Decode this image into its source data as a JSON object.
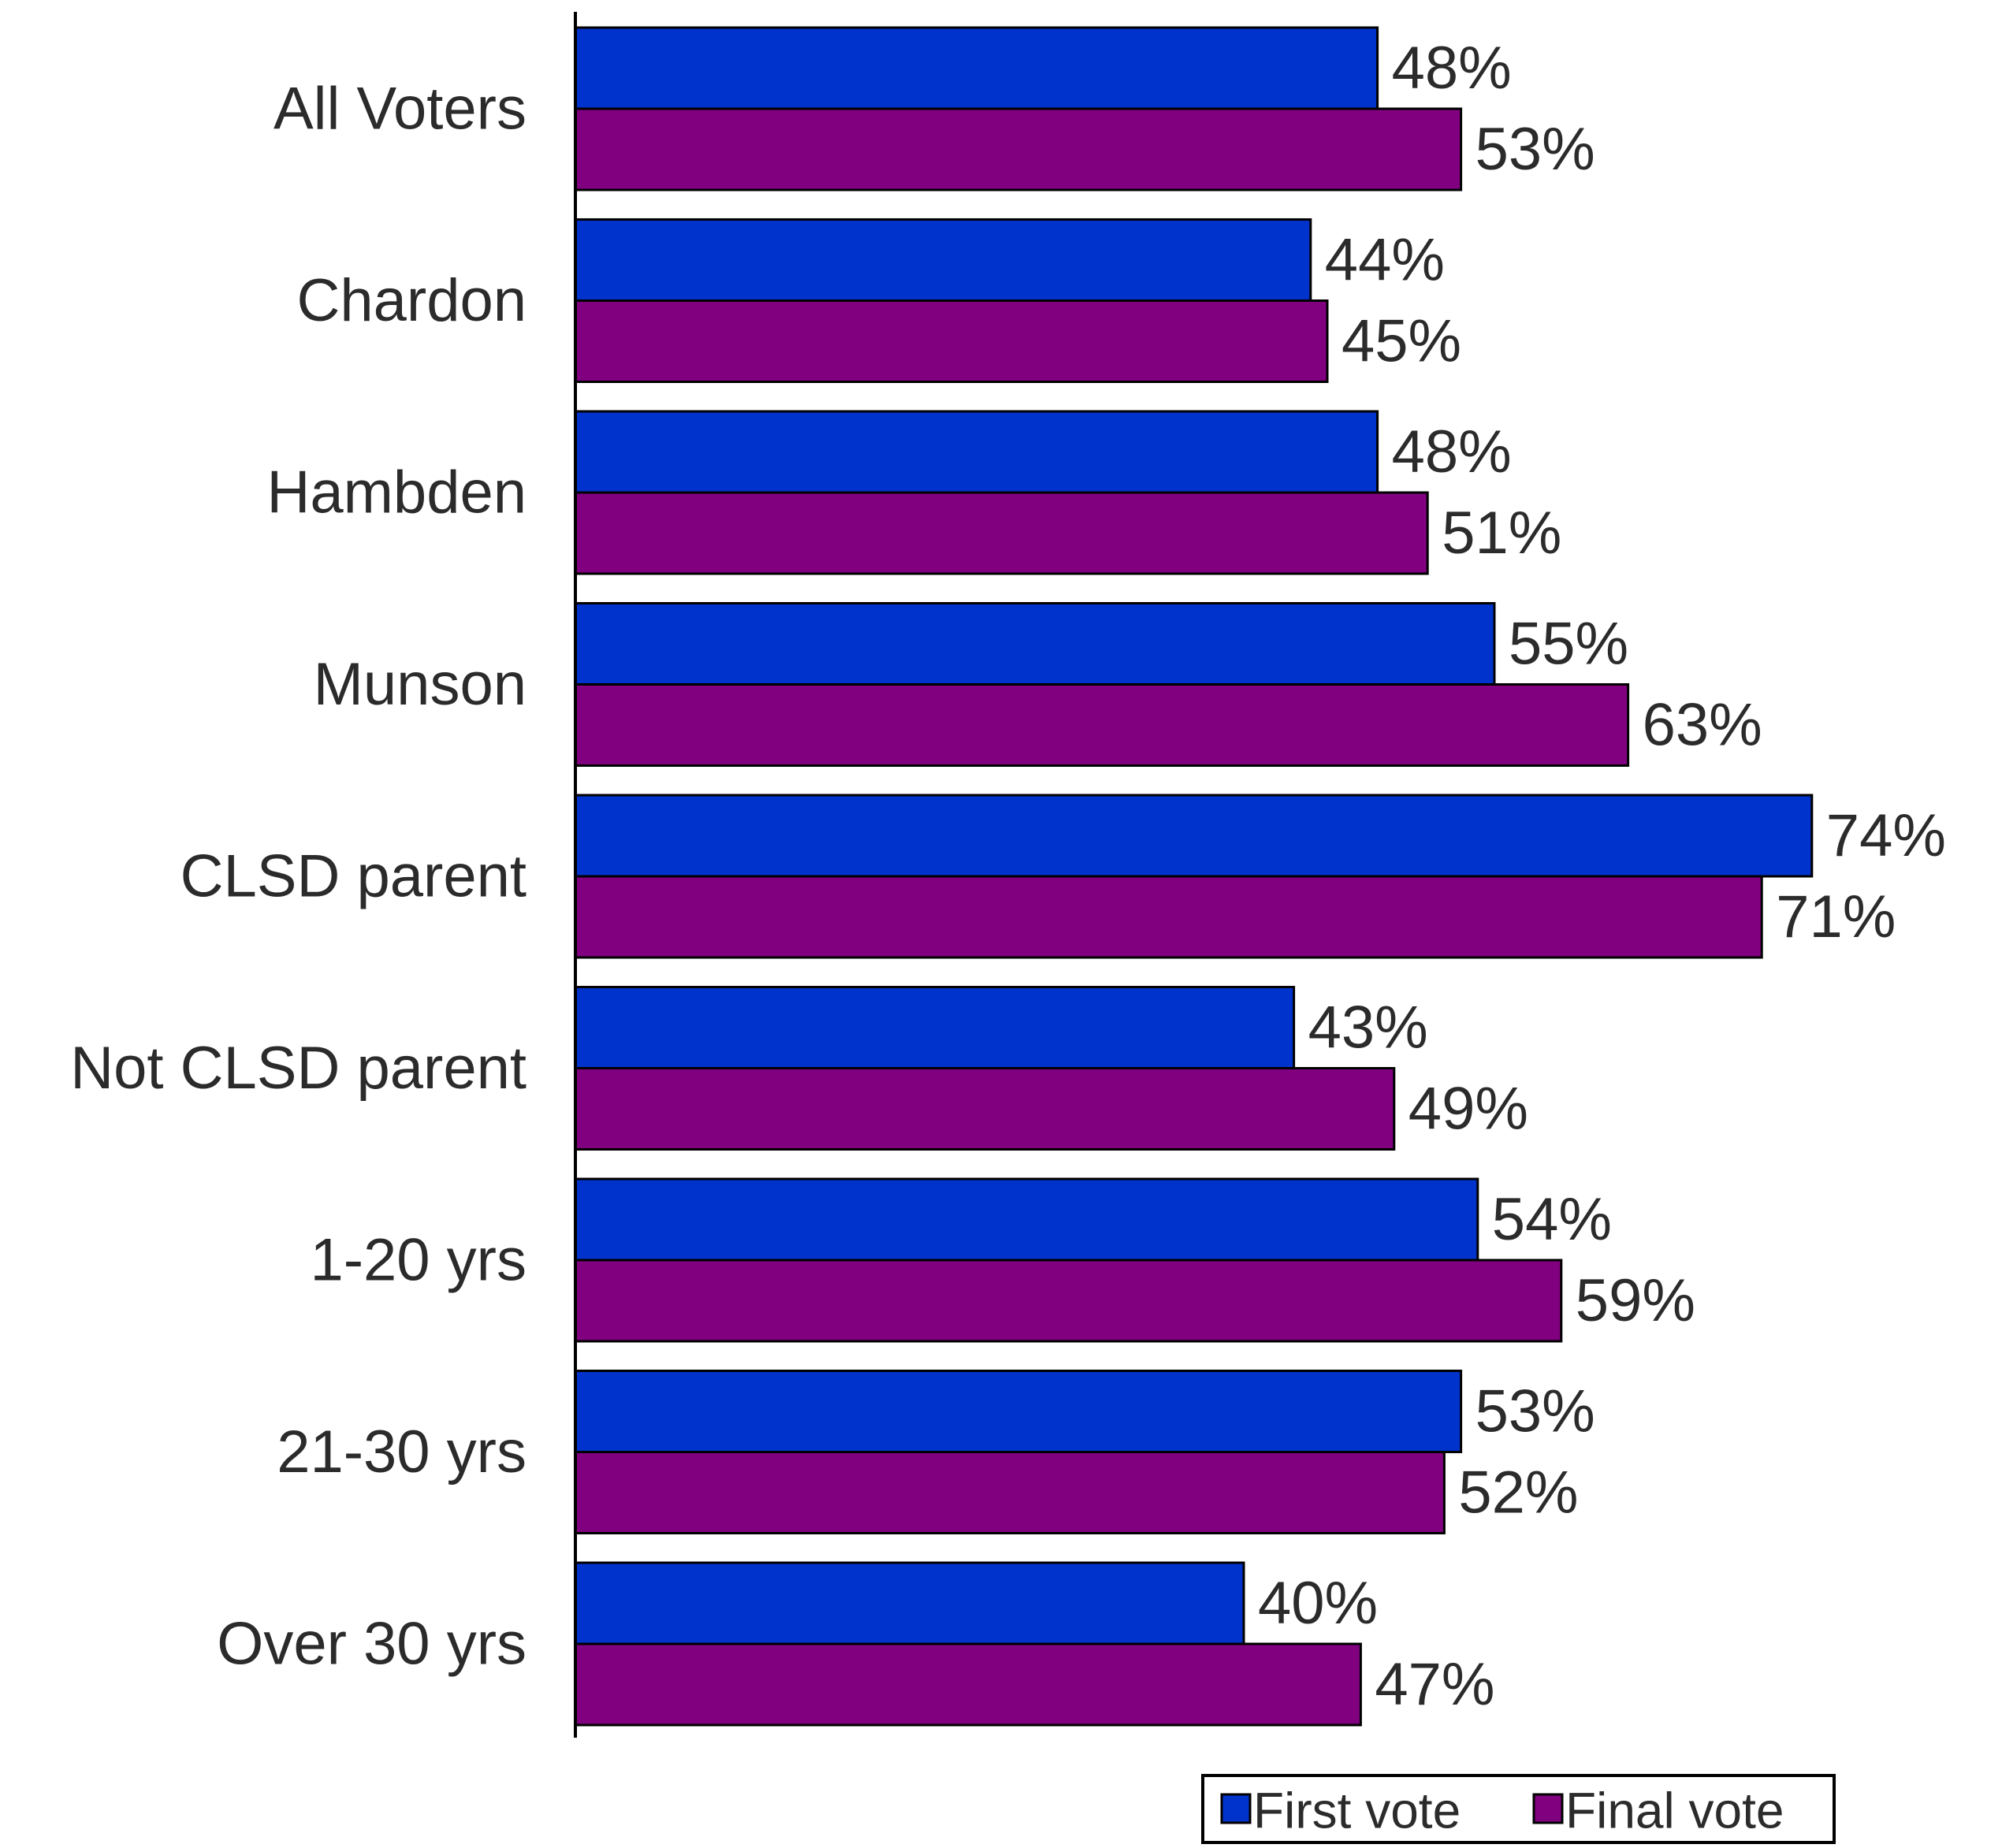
{
  "chart_data": {
    "type": "bar",
    "orientation": "horizontal",
    "title": "",
    "xlabel": "",
    "ylabel": "",
    "categories": [
      "All Voters",
      "Chardon",
      "Hambden",
      "Munson",
      "CLSD parent",
      "Not CLSD parent",
      "1-20 yrs",
      "21-30 yrs",
      "Over 30 yrs"
    ],
    "series": [
      {
        "name": "First vote",
        "color": "#0033cc",
        "values": [
          48,
          44,
          48,
          55,
          74,
          43,
          54,
          53,
          40
        ],
        "labels": [
          "48%",
          "44%",
          "48%",
          "55%",
          "74%",
          "43%",
          "54%",
          "53%",
          "40%"
        ]
      },
      {
        "name": "Final vote",
        "color": "#800080",
        "values": [
          53,
          45,
          51,
          63,
          71,
          49,
          59,
          52,
          47
        ],
        "labels": [
          "53%",
          "45%",
          "51%",
          "63%",
          "71%",
          "49%",
          "59%",
          "52%",
          "47%"
        ]
      }
    ],
    "xlim": [
      0,
      100
    ],
    "grid": false,
    "legend": "bottom-right"
  }
}
